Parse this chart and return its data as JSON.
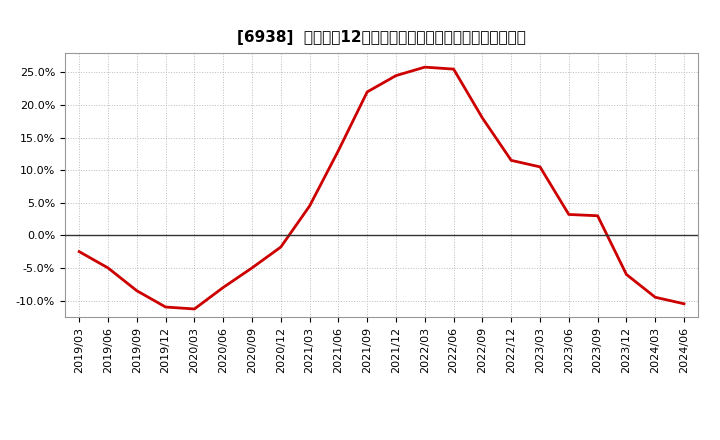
{
  "title": "[6938]  売上高の12か月移動合計の対前年同期増減率の推移",
  "x_labels": [
    "2019/03",
    "2019/06",
    "2019/09",
    "2019/12",
    "2020/03",
    "2020/06",
    "2020/09",
    "2020/12",
    "2021/03",
    "2021/06",
    "2021/09",
    "2021/12",
    "2022/03",
    "2022/06",
    "2022/09",
    "2022/12",
    "2023/03",
    "2023/06",
    "2023/09",
    "2023/12",
    "2024/03",
    "2024/06"
  ],
  "y_values": [
    -2.5,
    -5.0,
    -8.5,
    -11.0,
    -11.3,
    -8.0,
    -5.0,
    -1.8,
    4.5,
    13.0,
    22.0,
    24.5,
    25.8,
    25.5,
    18.0,
    11.5,
    10.5,
    3.2,
    3.0,
    -6.0,
    -9.5,
    -10.5
  ],
  "line_color": "#cc0000",
  "background_color": "#ffffff",
  "plot_bg_color": "#ffffff",
  "grid_color": "#bbbbbb",
  "ylim": [
    -12.5,
    28.0
  ],
  "yticks": [
    -10.0,
    -5.0,
    0.0,
    5.0,
    10.0,
    15.0,
    20.0,
    25.0
  ],
  "title_fontsize": 11,
  "tick_fontsize": 8,
  "line_width": 2.0,
  "zero_line_color": "#333333"
}
